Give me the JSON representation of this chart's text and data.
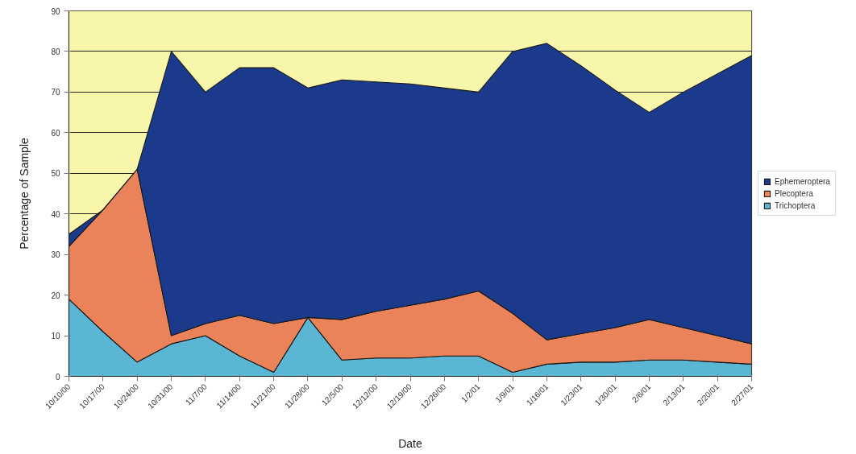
{
  "chart_data": {
    "type": "area",
    "stacked": true,
    "xlabel": "Date",
    "ylabel": "Percentage of Sample",
    "categories": [
      "10/10/00",
      "10/17/00",
      "10/24/00",
      "10/31/00",
      "11/7/00",
      "11/14/00",
      "11/21/00",
      "11/28/00",
      "12/5/00",
      "12/12/00",
      "12/19/00",
      "12/26/00",
      "1/2/01",
      "1/9/01",
      "1/16/01",
      "1/23/01",
      "1/30/01",
      "2/6/01",
      "2/13/01",
      "2/20/01",
      "2/27/01"
    ],
    "series": [
      {
        "name": "Trichoptera",
        "color": "#5bb6d3",
        "values": [
          19,
          11,
          3.5,
          8,
          10,
          5,
          1,
          14.5,
          4,
          4.5,
          4.5,
          5,
          5,
          1,
          3,
          3.5,
          3.5,
          4,
          4,
          3.5,
          3
        ]
      },
      {
        "name": "Plecoptera",
        "color": "#ea8359",
        "values": [
          13,
          30,
          47.5,
          2,
          3,
          10,
          12,
          0,
          10,
          11.5,
          13,
          14,
          16,
          14.5,
          6,
          7,
          8.5,
          10,
          8,
          6.5,
          5
        ]
      },
      {
        "name": "Ephemeroptera",
        "color": "#1b3a8b",
        "values": [
          3,
          0,
          0,
          70,
          57,
          61,
          63,
          56.5,
          59,
          56.5,
          54.5,
          52,
          49,
          64.5,
          73,
          66,
          58.5,
          51,
          58,
          64.5,
          71
        ]
      }
    ],
    "ylim": [
      0,
      90
    ],
    "yticks": [
      0,
      10,
      20,
      30,
      40,
      50,
      60,
      70,
      80,
      90
    ],
    "grid": "y",
    "legend": "right",
    "bands": [
      {
        "axis": "y",
        "from": 0,
        "to": 90,
        "color": "#f7f6ab"
      }
    ]
  }
}
